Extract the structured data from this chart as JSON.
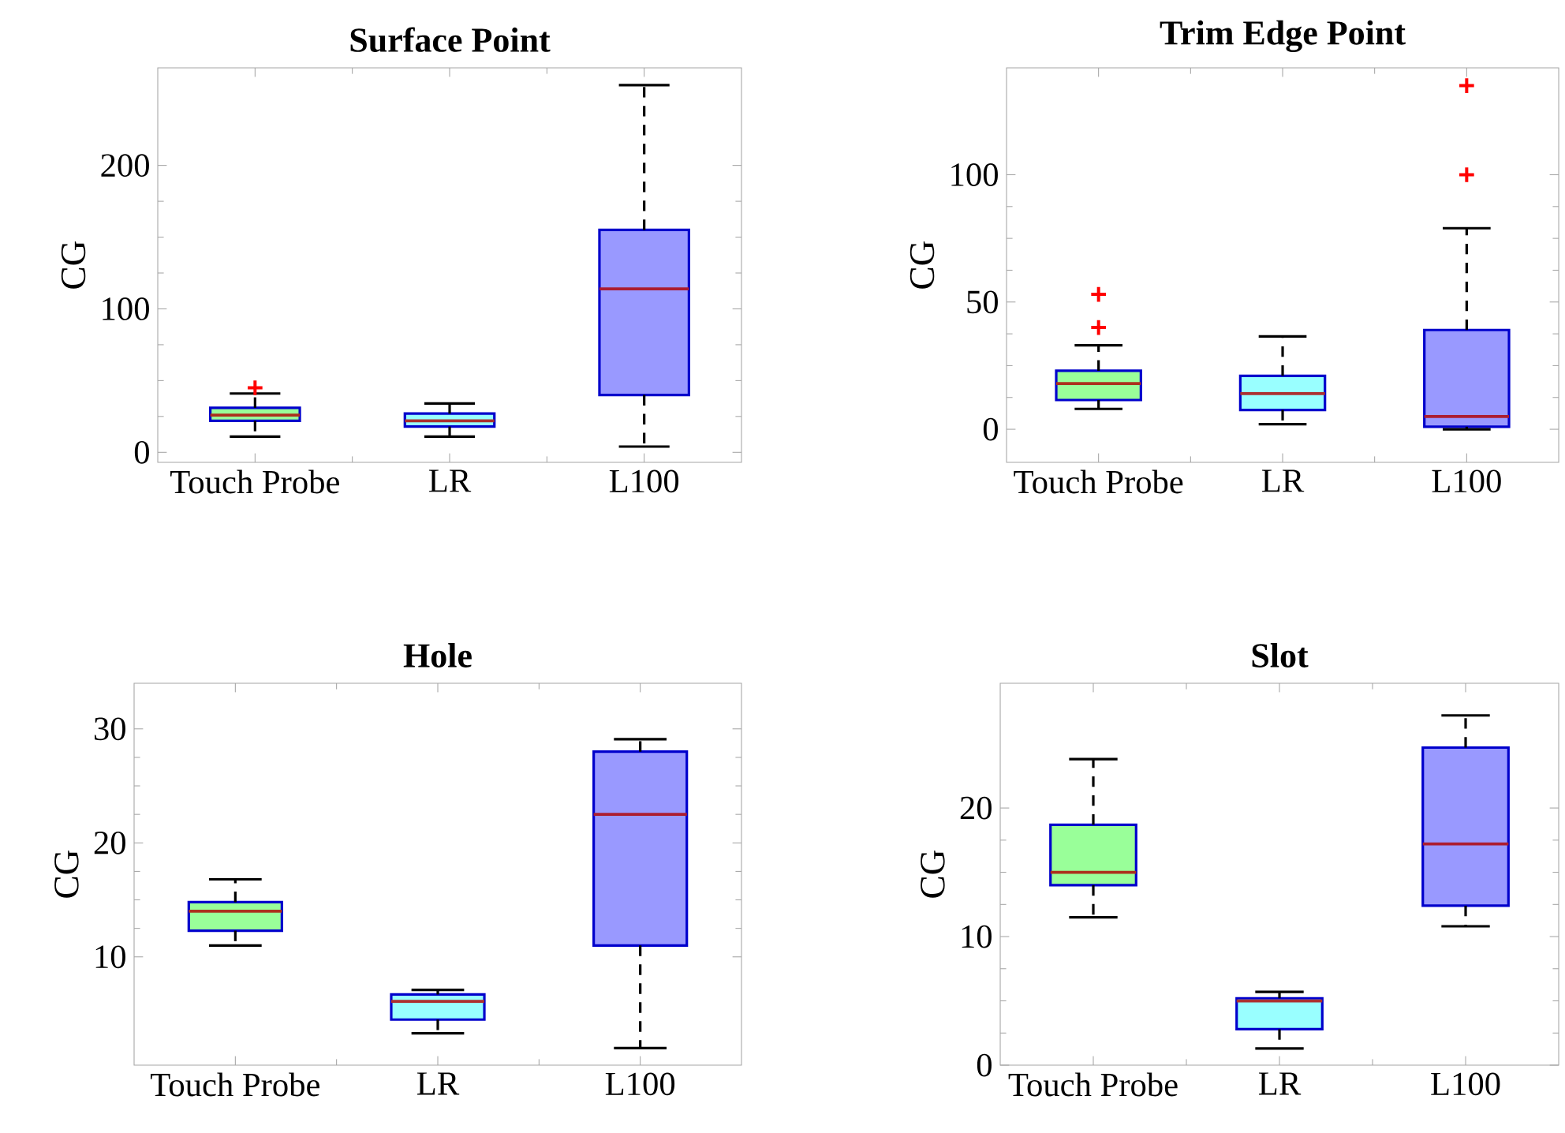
{
  "chart_data": [
    {
      "type": "box",
      "title": "Surface Point",
      "ylabel": "CG",
      "categories": [
        "Touch Probe",
        "LR",
        "L100"
      ],
      "ylim": [
        -7,
        268
      ],
      "yticks": [
        0,
        100,
        200
      ],
      "colors": [
        "#99ff99",
        "#99ffff",
        "#9999ff"
      ],
      "marker": "cross",
      "boxes": [
        {
          "low": 11,
          "q1": 22,
          "median": 26,
          "q3": 31,
          "high": 41,
          "outliers": [
            45
          ]
        },
        {
          "low": 11,
          "q1": 18,
          "median": 22,
          "q3": 27,
          "high": 34
        },
        {
          "low": 4,
          "q1": 40,
          "median": 114,
          "q3": 155,
          "high": 256
        }
      ]
    },
    {
      "type": "box",
      "title": "Trim Edge Point",
      "ylabel": "CG",
      "categories": [
        "Touch Probe",
        "LR",
        "L100"
      ],
      "ylim": [
        -13,
        142
      ],
      "yticks": [
        0,
        50,
        100
      ],
      "colors": [
        "#99ff99",
        "#99ffff",
        "#9999ff"
      ],
      "marker": "cross",
      "boxes": [
        {
          "low": 8,
          "q1": 11.5,
          "median": 18,
          "q3": 23,
          "high": 33,
          "outliers": [
            40,
            53
          ]
        },
        {
          "low": 2,
          "q1": 7.6,
          "median": 14,
          "q3": 21,
          "high": 36.5
        },
        {
          "low": 0,
          "q1": 1,
          "median": 5,
          "q3": 39,
          "high": 79,
          "outliers": [
            100,
            135
          ]
        }
      ]
    },
    {
      "type": "box",
      "title": "Hole",
      "ylabel": "CG",
      "categories": [
        "Touch Probe",
        "LR",
        "L100"
      ],
      "ylim": [
        0.5,
        34
      ],
      "yticks": [
        10,
        20,
        30
      ],
      "colors": [
        "#99ff99",
        "#99ffff",
        "#9999ff"
      ],
      "boxes": [
        {
          "low": 11,
          "q1": 12.3,
          "median": 14,
          "q3": 14.8,
          "high": 16.8
        },
        {
          "low": 3.3,
          "q1": 4.5,
          "median": 6.1,
          "q3": 6.7,
          "high": 7.1
        },
        {
          "low": 2,
          "q1": 11,
          "median": 22.5,
          "q3": 28,
          "high": 29.1
        }
      ]
    },
    {
      "type": "box",
      "title": "Slot",
      "ylabel": "CG",
      "categories": [
        "Touch Probe",
        "LR",
        "L100"
      ],
      "ylim": [
        0,
        29.7
      ],
      "yticks": [
        0,
        10,
        20
      ],
      "colors": [
        "#99ff99",
        "#99ffff",
        "#9999ff"
      ],
      "boxes": [
        {
          "low": 11.5,
          "q1": 14,
          "median": 15,
          "q3": 18.7,
          "high": 23.8
        },
        {
          "low": 1.3,
          "q1": 2.8,
          "median": 5,
          "q3": 5.2,
          "high": 5.7
        },
        {
          "low": 10.8,
          "q1": 12.4,
          "median": 17.2,
          "q3": 24.7,
          "high": 27.2
        }
      ]
    }
  ]
}
